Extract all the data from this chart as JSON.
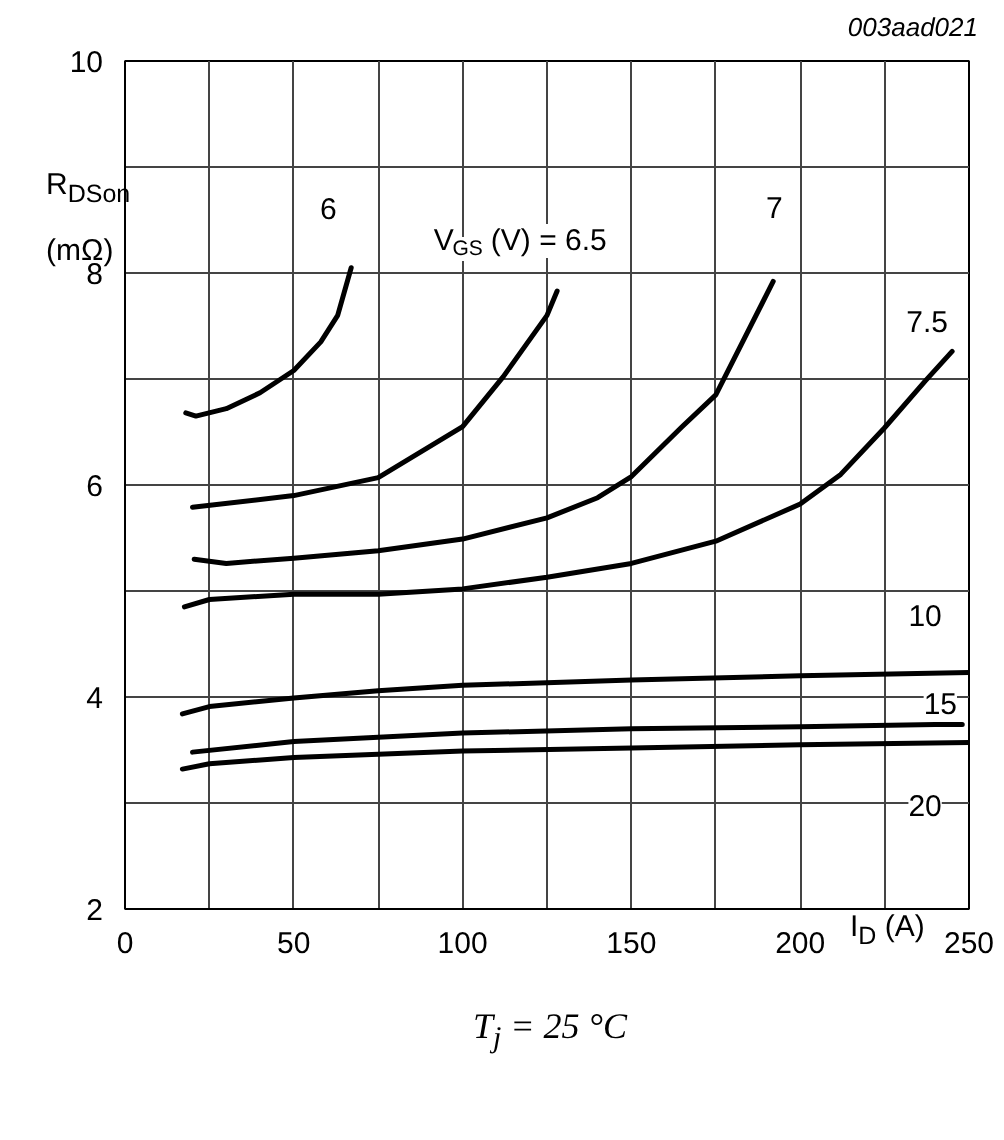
{
  "chart_data": {
    "type": "line",
    "title": "003aad021",
    "xlabel": "I$_{D}$ (A)",
    "ylabel": "R$_{DSon}$ (mΩ)",
    "xlim": [
      0,
      250
    ],
    "ylim": [
      2,
      10
    ],
    "xticks": [
      0,
      {
        "value": 25,
        "label": null
      },
      50,
      {
        "value": 75,
        "label": null
      },
      100,
      {
        "value": 125,
        "label": null
      },
      150,
      {
        "value": 175,
        "label": null
      },
      200,
      {
        "value": 225,
        "label": null
      },
      250
    ],
    "yticks": [
      2,
      {
        "value": 3,
        "label": null
      },
      4,
      {
        "value": 5,
        "label": null
      },
      6,
      {
        "value": 7,
        "label": null
      },
      8,
      {
        "value": 9,
        "label": null
      },
      10
    ],
    "grid": true,
    "line_style": "solid",
    "series": [
      {
        "name": "6",
        "color": "#000000",
        "x": [
          18,
          21,
          30,
          40,
          50,
          58,
          63,
          67
        ],
        "values": [
          6.68,
          6.65,
          6.72,
          6.87,
          7.08,
          7.35,
          7.6,
          8.05
        ]
      },
      {
        "name": "V$_{GS}$ (V) = 6.5",
        "color": "#000000",
        "x": [
          20,
          50,
          75,
          100,
          112,
          125,
          128
        ],
        "values": [
          5.79,
          5.9,
          6.07,
          6.55,
          7.02,
          7.6,
          7.83
        ]
      },
      {
        "name": "7",
        "color": "#000000",
        "x": [
          20.5,
          30,
          50,
          75,
          100,
          125,
          140,
          150,
          165,
          175,
          192
        ],
        "values": [
          5.3,
          5.26,
          5.31,
          5.38,
          5.49,
          5.69,
          5.88,
          6.08,
          6.55,
          6.85,
          7.92
        ]
      },
      {
        "name": "7.5",
        "color": "#000000",
        "x": [
          17.6,
          25,
          50,
          75,
          100,
          125,
          150,
          175,
          200,
          212,
          225,
          237,
          245
        ],
        "values": [
          4.85,
          4.92,
          4.97,
          4.97,
          5.02,
          5.13,
          5.26,
          5.47,
          5.82,
          6.1,
          6.54,
          6.98,
          7.26
        ]
      },
      {
        "name": "10",
        "color": "#000000",
        "x": [
          17,
          25,
          50,
          75,
          100,
          150,
          200,
          250
        ],
        "values": [
          3.84,
          3.91,
          3.99,
          4.06,
          4.11,
          4.16,
          4.2,
          4.23
        ]
      },
      {
        "name": "15",
        "color": "#000000",
        "x": [
          20,
          50,
          100,
          150,
          200,
          240,
          248
        ],
        "values": [
          3.48,
          3.58,
          3.66,
          3.7,
          3.72,
          3.74,
          3.74
        ]
      },
      {
        "name": "20",
        "color": "#000000",
        "x": [
          17,
          25,
          50,
          100,
          150,
          200,
          250
        ],
        "values": [
          3.32,
          3.37,
          3.43,
          3.49,
          3.52,
          3.55,
          3.57
        ]
      }
    ],
    "annotations": [
      "T$_{j}$ = 25 °C"
    ]
  }
}
